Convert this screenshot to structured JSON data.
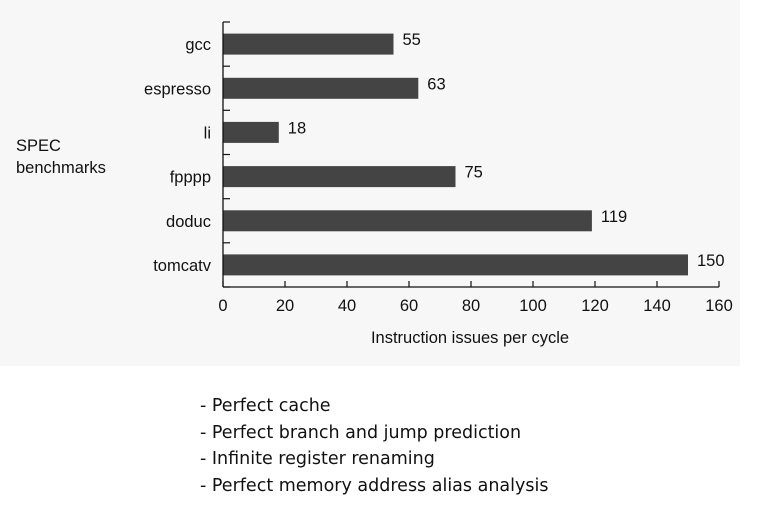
{
  "chart_data": {
    "type": "bar",
    "orientation": "horizontal",
    "categories": [
      "gcc",
      "espresso",
      "li",
      "fpppp",
      "doduc",
      "tomcatv"
    ],
    "values": [
      55,
      63,
      18,
      75,
      119,
      150
    ],
    "xlabel": "Instruction issues per cycle",
    "ylabel": "SPEC\nbenchmarks",
    "xlim": [
      0,
      160
    ],
    "xticks": [
      0,
      20,
      40,
      60,
      80,
      100,
      120,
      140,
      160
    ],
    "data_labels": true,
    "grid": false,
    "bar_color": "#444444"
  },
  "notes": [
    "- Perfect cache",
    "- Perfect branch and jump prediction",
    "- Infinite register renaming",
    "- Perfect memory address alias analysis"
  ]
}
